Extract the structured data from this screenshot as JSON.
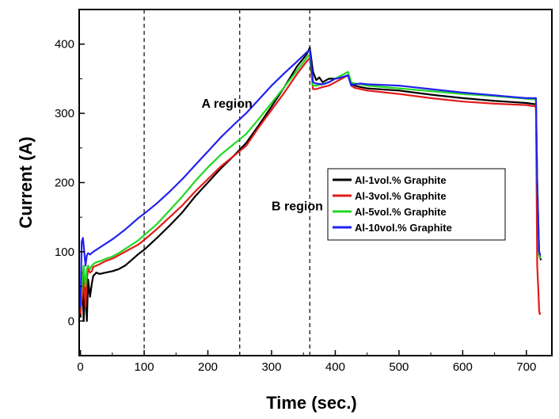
{
  "chart_data": {
    "type": "line",
    "title": "",
    "xlabel": "Time (sec.)",
    "ylabel": "Current (A)",
    "xlim": [
      -2,
      740
    ],
    "ylim": [
      -50,
      450
    ],
    "xticks": [
      0,
      100,
      200,
      300,
      400,
      500,
      600,
      700
    ],
    "yticks": [
      0,
      100,
      200,
      300,
      400
    ],
    "grid": false,
    "legend_position": "center-right",
    "vlines": [
      100,
      250,
      360
    ],
    "annotations": [
      {
        "text": "A region",
        "x": 190,
        "y": 308
      },
      {
        "text": "B region",
        "x": 300,
        "y": 160
      }
    ],
    "series": [
      {
        "name": "Al-1vol.% Graphite",
        "color": "#000000",
        "x": [
          0,
          3,
          5,
          8,
          10,
          12,
          15,
          18,
          20,
          25,
          30,
          40,
          50,
          60,
          70,
          80,
          90,
          100,
          120,
          140,
          160,
          180,
          200,
          220,
          240,
          260,
          280,
          300,
          320,
          340,
          355,
          360,
          365,
          370,
          375,
          380,
          390,
          400,
          410,
          420,
          425,
          430,
          440,
          450,
          500,
          550,
          600,
          650,
          700,
          715,
          717,
          720,
          722,
          723
        ],
        "y": [
          5,
          70,
          0,
          50,
          0,
          60,
          35,
          55,
          65,
          70,
          68,
          70,
          72,
          75,
          80,
          88,
          96,
          103,
          120,
          138,
          157,
          180,
          200,
          220,
          238,
          257,
          283,
          310,
          338,
          368,
          385,
          395,
          360,
          348,
          352,
          345,
          350,
          350,
          352,
          355,
          343,
          340,
          338,
          336,
          333,
          327,
          322,
          318,
          315,
          313,
          200,
          100,
          90,
          88
        ]
      },
      {
        "name": "Al-3vol.% Graphite",
        "color": "#e41a1a",
        "x": [
          0,
          3,
          5,
          8,
          10,
          12,
          15,
          18,
          20,
          25,
          30,
          40,
          50,
          60,
          70,
          80,
          90,
          100,
          120,
          140,
          160,
          180,
          200,
          220,
          240,
          260,
          280,
          300,
          320,
          340,
          355,
          360,
          365,
          370,
          380,
          390,
          400,
          410,
          420,
          425,
          430,
          440,
          450,
          500,
          550,
          600,
          650,
          700,
          715,
          717,
          719,
          720,
          721,
          722
        ],
        "y": [
          10,
          40,
          70,
          20,
          60,
          75,
          70,
          72,
          78,
          80,
          82,
          87,
          90,
          95,
          100,
          105,
          110,
          117,
          133,
          150,
          167,
          187,
          205,
          223,
          238,
          253,
          280,
          305,
          330,
          357,
          375,
          380,
          335,
          335,
          338,
          340,
          345,
          350,
          355,
          340,
          337,
          335,
          333,
          328,
          322,
          317,
          314,
          312,
          310,
          80,
          40,
          15,
          10,
          12
        ]
      },
      {
        "name": "Al-5vol.% Graphite",
        "color": "#22d822",
        "x": [
          0,
          3,
          5,
          8,
          10,
          12,
          15,
          18,
          20,
          25,
          30,
          40,
          50,
          60,
          70,
          80,
          90,
          100,
          120,
          140,
          160,
          180,
          200,
          220,
          240,
          260,
          280,
          300,
          320,
          340,
          355,
          360,
          365,
          370,
          380,
          390,
          400,
          410,
          420,
          425,
          430,
          440,
          450,
          500,
          550,
          600,
          650,
          700,
          715,
          717,
          720,
          722
        ],
        "y": [
          20,
          60,
          80,
          50,
          75,
          80,
          75,
          80,
          82,
          85,
          86,
          90,
          93,
          98,
          104,
          110,
          116,
          124,
          140,
          160,
          180,
          202,
          222,
          240,
          255,
          270,
          292,
          315,
          338,
          362,
          380,
          385,
          340,
          340,
          342,
          345,
          350,
          355,
          360,
          345,
          343,
          342,
          340,
          336,
          332,
          328,
          325,
          321,
          320,
          200,
          95,
          90
        ]
      },
      {
        "name": "Al-10vol.% Graphite",
        "color": "#2222ee",
        "x": [
          0,
          2,
          4,
          6,
          8,
          10,
          12,
          15,
          20,
          25,
          30,
          40,
          50,
          60,
          70,
          80,
          90,
          100,
          120,
          140,
          160,
          180,
          200,
          220,
          240,
          260,
          280,
          300,
          320,
          340,
          355,
          360,
          365,
          370,
          380,
          390,
          400,
          410,
          420,
          425,
          430,
          440,
          450,
          500,
          550,
          600,
          650,
          700,
          715,
          717,
          719,
          720,
          722
        ],
        "y": [
          20,
          115,
          120,
          100,
          80,
          95,
          98,
          96,
          100,
          103,
          106,
          112,
          118,
          125,
          132,
          140,
          148,
          155,
          170,
          187,
          205,
          225,
          245,
          265,
          283,
          300,
          320,
          340,
          358,
          375,
          388,
          392,
          345,
          343,
          342,
          345,
          350,
          352,
          355,
          340,
          342,
          343,
          342,
          340,
          335,
          330,
          326,
          322,
          322,
          200,
          130,
          100,
          95
        ]
      }
    ]
  }
}
